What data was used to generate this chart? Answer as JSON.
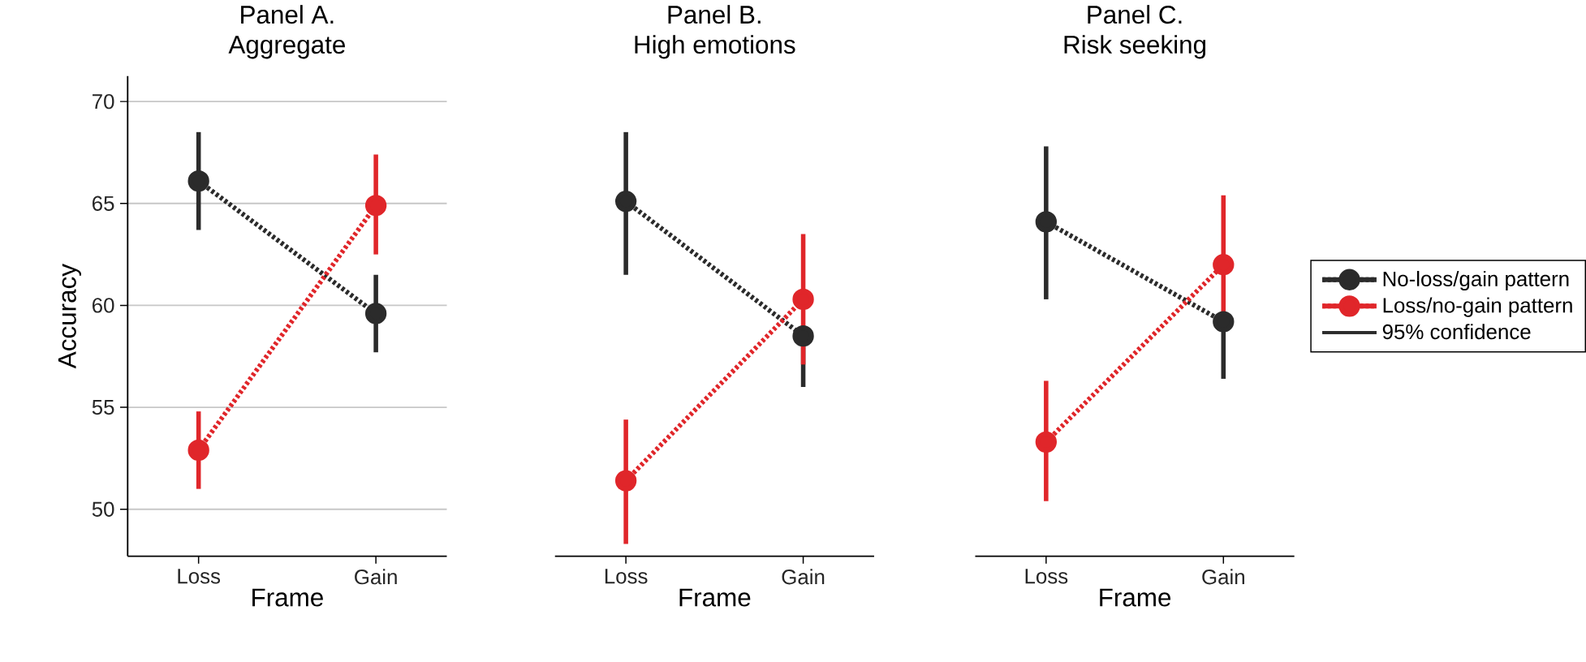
{
  "chart_data": [
    {
      "type": "line",
      "title": "Panel A.",
      "subtitle": "Aggregate",
      "xlabel": "Frame",
      "ylabel": "Accuracy",
      "categories": [
        "Loss",
        "Gain"
      ],
      "ylim": [
        47.7,
        71.25
      ],
      "yticks": [
        50,
        55,
        60,
        65,
        70
      ],
      "grid": "y",
      "marker": "circle",
      "line_style": "dotted",
      "series": [
        {
          "color": "#2b2b2b",
          "values": [
            66.1,
            59.6
          ],
          "errors": [
            [
              63.7,
              68.5
            ],
            [
              57.7,
              61.5
            ]
          ]
        },
        {
          "color": "#e0262a",
          "values": [
            52.9,
            64.9
          ],
          "errors": [
            [
              51.0,
              54.8
            ],
            [
              62.5,
              67.4
            ]
          ]
        }
      ]
    },
    {
      "type": "line",
      "title": "Panel B.",
      "subtitle": "High emotions",
      "xlabel": "Frame",
      "categories": [
        "Loss",
        "Gain"
      ],
      "ylim": [
        47.7,
        70
      ],
      "yticks": [
        50,
        55,
        60,
        65,
        70
      ],
      "grid": "y",
      "marker": "circle",
      "line_style": "dotted",
      "tick_labels": "x",
      "series": [
        {
          "color": "#2b2b2b",
          "values": [
            65.1,
            58.5
          ],
          "errors": [
            [
              61.5,
              68.5
            ],
            [
              56.0,
              58.5
            ]
          ]
        },
        {
          "color": "#e0262a",
          "values": [
            51.4,
            60.3
          ],
          "errors": [
            [
              48.3,
              54.4
            ],
            [
              57.1,
              63.5
            ]
          ]
        }
      ]
    },
    {
      "type": "line",
      "title": "Panel C.",
      "subtitle": "Risk seeking",
      "xlabel": "Frame",
      "categories": [
        "Loss",
        "Gain"
      ],
      "ylim": [
        47.7,
        70
      ],
      "yticks": [
        50,
        55,
        60,
        65,
        70
      ],
      "grid": "y",
      "marker": "circle",
      "line_style": "dotted",
      "tick_labels": "x",
      "legend": "right",
      "series": [
        {
          "name": "No-loss/gain pattern",
          "color": "#2b2b2b",
          "values": [
            64.1,
            59.2
          ],
          "errors": [
            [
              60.3,
              67.8
            ],
            [
              56.4,
              59.2
            ]
          ]
        },
        {
          "name": "Loss/no-gain pattern",
          "color": "#e0262a",
          "values": [
            53.3,
            62.0
          ],
          "errors": [
            [
              50.4,
              56.3
            ],
            [
              58.9,
              65.4
            ]
          ]
        },
        {
          "name": "95% confidence",
          "color": "#2b2b2b",
          "type": "line",
          "marker": "none",
          "line_style": "solid",
          "values": [
            null,
            null
          ]
        }
      ]
    }
  ]
}
